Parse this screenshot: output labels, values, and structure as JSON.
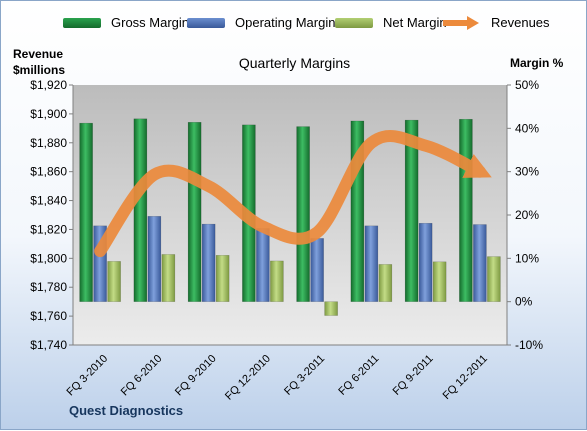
{
  "legend": {
    "gross": "Gross Margin",
    "operating": "Operating Margin",
    "net": "Net Margin",
    "revenues": "Revenues"
  },
  "axes": {
    "left_title_line1": "Revenue",
    "left_title_line2": "$millions",
    "right_title": "Margin %"
  },
  "company": "Quest Diagnostics",
  "colors": {
    "gross": "#1e8a3c",
    "operating": "#4f74b8",
    "net": "#9bbb59",
    "revenues": "#ec8a3c",
    "plot_top": "#bcbcbc",
    "plot_bottom": "#ececec"
  },
  "chart_data": {
    "type": "bar",
    "title": "Quarterly Margins",
    "categories": [
      "FQ 3-2010",
      "FQ 6-2010",
      "FQ 9-2010",
      "FQ 12-2010",
      "FQ 3-2011",
      "FQ 6-2011",
      "FQ 9-2011",
      "FQ 12-2011"
    ],
    "series": [
      {
        "name": "Gross Margin",
        "axis": "right",
        "values": [
          41.2,
          42.2,
          41.4,
          40.8,
          40.4,
          41.7,
          41.9,
          42.1
        ]
      },
      {
        "name": "Operating Margin",
        "axis": "right",
        "values": [
          17.5,
          19.7,
          17.9,
          16.9,
          14.6,
          17.5,
          18.1,
          17.8
        ]
      },
      {
        "name": "Net Margin",
        "axis": "right",
        "values": [
          9.3,
          10.9,
          10.7,
          9.4,
          -3.2,
          8.6,
          9.2,
          10.4
        ]
      },
      {
        "name": "Revenues",
        "axis": "left",
        "type": "line",
        "values": [
          1805,
          1858,
          1850,
          1822,
          1818,
          1880,
          1878,
          1860
        ]
      }
    ],
    "ylabel_left": "Revenue $millions",
    "ylim_left": [
      1740,
      1920
    ],
    "yticks_left": [
      "$1,740",
      "$1,760",
      "$1,780",
      "$1,800",
      "$1,820",
      "$1,840",
      "$1,860",
      "$1,880",
      "$1,900",
      "$1,920"
    ],
    "ylabel_right": "Margin %",
    "ylim_right": [
      -10,
      50
    ],
    "yticks_right": [
      "-10%",
      "0%",
      "10%",
      "20%",
      "30%",
      "40%",
      "50%"
    ],
    "legend_position": "top",
    "grid": false
  }
}
